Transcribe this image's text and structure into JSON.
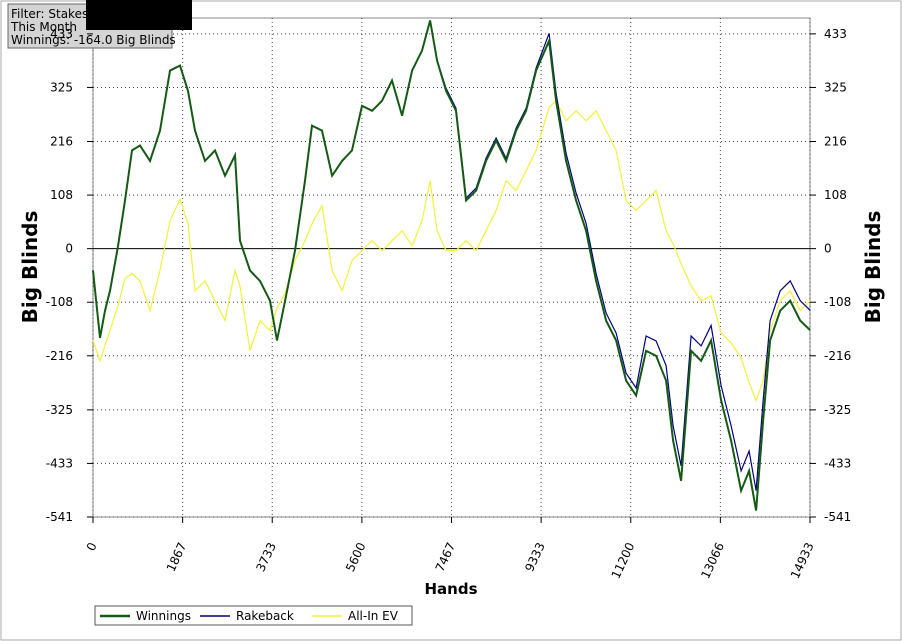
{
  "chart_data": {
    "type": "line",
    "annotations": [
      "Filter: Stakes",
      "This Month",
      "Winnings: -164.0 Big Blinds"
    ],
    "xlabel": "Hands",
    "ylabel": "Big Blinds",
    "y2label": "Big Blinds",
    "xlim": [
      0,
      14933
    ],
    "xticks": [
      0,
      1867,
      3733,
      5600,
      7467,
      9333,
      11200,
      13066,
      14933
    ],
    "ylim": [
      -541,
      465
    ],
    "yticks": [
      -541,
      -433,
      -325,
      -216,
      -108,
      0,
      108,
      216,
      325,
      433
    ],
    "y2lim": [
      -541,
      465
    ],
    "y2ticks": [
      -541,
      -433,
      -325,
      -216,
      -108,
      0,
      108,
      216,
      325,
      433
    ],
    "grid": true,
    "legend": "bottom",
    "x": [
      0,
      146,
      250,
      354,
      521,
      666,
      812,
      979,
      1187,
      1396,
      1604,
      1812,
      1979,
      2125,
      2333,
      2541,
      2750,
      2958,
      3062,
      3270,
      3479,
      3687,
      3833,
      4000,
      4208,
      4416,
      4562,
      4770,
      4979,
      5187,
      5395,
      5603,
      5812,
      6020,
      6228,
      6437,
      6645,
      6853,
      7020,
      7166,
      7353,
      7561,
      7770,
      7978,
      8186,
      8395,
      8603,
      8811,
      9020,
      9228,
      9499,
      9645,
      9853,
      10061,
      10270,
      10478,
      10686,
      10894,
      11103,
      11311,
      11519,
      11728,
      11936,
      12082,
      12249,
      12457,
      12665,
      12874,
      13082,
      13290,
      13499,
      13665,
      13811,
      13957,
      14103,
      14312,
      14520,
      14728,
      14933
    ],
    "series": [
      {
        "name": "Winnings",
        "color": "#145a14",
        "values": [
          -44,
          -180,
          -125,
          -85,
          5,
          97,
          198,
          208,
          177,
          238,
          359,
          369,
          318,
          238,
          177,
          198,
          147,
          188,
          16,
          -44,
          -65,
          -105,
          -185,
          -105,
          -4,
          137,
          248,
          238,
          147,
          177,
          198,
          288,
          278,
          298,
          339,
          268,
          359,
          399,
          460,
          379,
          318,
          278,
          97,
          117,
          177,
          218,
          177,
          238,
          278,
          359,
          419,
          298,
          177,
          97,
          36,
          -65,
          -145,
          -185,
          -266,
          -296,
          -206,
          -216,
          -266,
          -387,
          -468,
          -206,
          -226,
          -185,
          -306,
          -387,
          -488,
          -448,
          -528,
          -347,
          -185,
          -125,
          -105,
          -145,
          -164
        ]
      },
      {
        "name": "Rakeback",
        "color": "#00007f",
        "values": [
          -44,
          -180,
          -125,
          -85,
          5,
          97,
          198,
          208,
          177,
          238,
          359,
          369,
          318,
          238,
          177,
          198,
          147,
          188,
          16,
          -44,
          -65,
          -105,
          -185,
          -105,
          -4,
          137,
          248,
          238,
          147,
          177,
          198,
          288,
          278,
          298,
          339,
          268,
          359,
          399,
          460,
          379,
          323,
          283,
          102,
          122,
          182,
          223,
          182,
          243,
          283,
          364,
          434,
          313,
          192,
          112,
          51,
          -50,
          -130,
          -170,
          -251,
          -281,
          -176,
          -186,
          -236,
          -357,
          -438,
          -176,
          -196,
          -155,
          -276,
          -357,
          -448,
          -408,
          -488,
          -307,
          -145,
          -85,
          -65,
          -105,
          -124
        ]
      },
      {
        "name": "All-In EV",
        "color": "#f2f23a",
        "values": [
          -185,
          -226,
          -195,
          -165,
          -115,
          -60,
          -50,
          -65,
          -125,
          -44,
          56,
          100,
          50,
          -85,
          -65,
          -105,
          -145,
          -44,
          -75,
          -206,
          -145,
          -165,
          -120,
          -90,
          -24,
          16,
          50,
          87,
          -44,
          -85,
          -24,
          -4,
          16,
          -4,
          16,
          36,
          6,
          56,
          137,
          36,
          -4,
          -4,
          16,
          -4,
          36,
          77,
          137,
          117,
          157,
          198,
          285,
          298,
          258,
          278,
          258,
          278,
          238,
          198,
          97,
          77,
          97,
          117,
          36,
          10,
          -30,
          -75,
          -105,
          -95,
          -170,
          -190,
          -220,
          -270,
          -306,
          -266,
          -165,
          -105,
          -85,
          -125,
          -105
        ]
      }
    ]
  }
}
